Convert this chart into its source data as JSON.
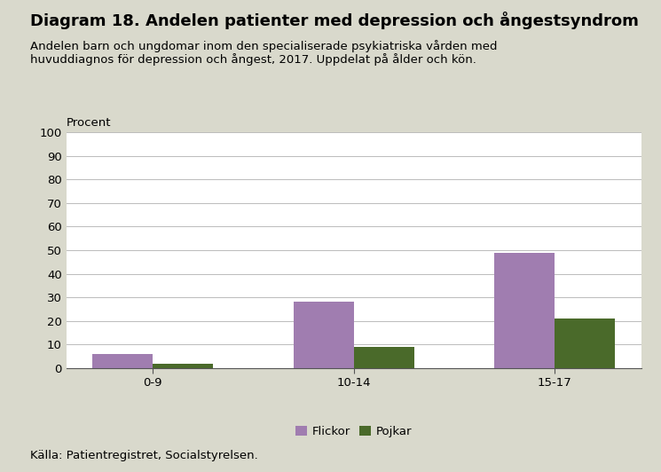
{
  "title": "Diagram 18. Andelen patienter med depression och ångestsyndrom",
  "subtitle_line1": "Andelen barn och ungdomar inom den specialiserade psykiatriska vården med",
  "subtitle_line2": "huvuddiagnos för depression och ångest, 2017. Uppdelat på ålder och kön.",
  "ylabel": "Procent",
  "categories": [
    "0-9",
    "10-14",
    "15-17"
  ],
  "flickor_values": [
    6,
    28,
    49
  ],
  "pojkar_values": [
    2,
    9,
    21
  ],
  "flickor_color": "#a07db0",
  "pojkar_color": "#4a6a2a",
  "ylim": [
    0,
    100
  ],
  "yticks": [
    0,
    10,
    20,
    30,
    40,
    50,
    60,
    70,
    80,
    90,
    100
  ],
  "legend_labels": [
    "Flickor",
    "Pojkar"
  ],
  "source_text": "Källa: Patientregistret, Socialstyrelsen.",
  "background_color": "#d9d9cc",
  "plot_background_color": "#ffffff",
  "title_fontsize": 13,
  "subtitle_fontsize": 9.5,
  "axis_fontsize": 9.5,
  "bar_width": 0.3
}
